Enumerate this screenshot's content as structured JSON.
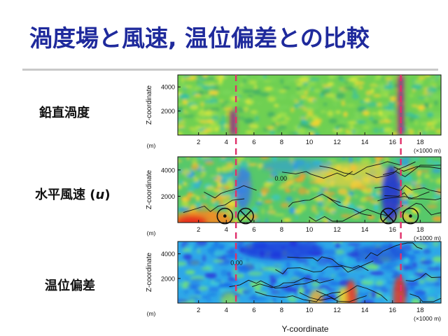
{
  "page": {
    "title": "渦度場と風速, 温位偏差との比較"
  },
  "rows": [
    {
      "label": "鉛直渦度"
    },
    {
      "label_prefix": "水平風速 (",
      "label_var": "u",
      "label_suffix": ")"
    },
    {
      "label": "温位偏差"
    }
  ],
  "colors": {
    "title": "#1f2a9c",
    "marker_line": "#e0306a",
    "low": "#1d2bd8",
    "mid": "#3cd24a",
    "high": "#e8261c"
  },
  "chart_data": [
    {
      "type": "heatmap",
      "panel": "鉛直渦度",
      "ylabel": "Z-coordinate",
      "yunit": "(m)",
      "xunit": "(×1000 m)",
      "xlim": [
        0.5,
        19.5
      ],
      "ylim": [
        0,
        5000
      ],
      "xticks": [
        2,
        4,
        6,
        8,
        10,
        12,
        14,
        16,
        18
      ],
      "yticks": [
        2000,
        4000
      ],
      "marker_lines_x": [
        4.7,
        16.6
      ],
      "features": [
        {
          "x": 4.5,
          "z_top": 2000,
          "sign": "positive"
        },
        {
          "x": 16.6,
          "z_top": 5000,
          "sign": "mixed"
        }
      ]
    },
    {
      "type": "heatmap",
      "panel": "水平風速 (u)",
      "ylabel": "Z-coordinate",
      "yunit": "(m)",
      "xunit": "(×1000 m)",
      "xlim": [
        0.5,
        19.5
      ],
      "ylim": [
        0,
        5000
      ],
      "xticks": [
        2,
        4,
        6,
        8,
        10,
        12,
        14,
        16,
        18
      ],
      "yticks": [
        2000,
        4000
      ],
      "contour_label": "0.00",
      "marker_lines_x": [
        4.7,
        16.6
      ],
      "flow_symbols": [
        {
          "x": 3.9,
          "z": 500,
          "kind": "out"
        },
        {
          "x": 5.4,
          "z": 500,
          "kind": "in"
        },
        {
          "x": 15.7,
          "z": 500,
          "kind": "in"
        },
        {
          "x": 17.3,
          "z": 500,
          "kind": "out"
        }
      ]
    },
    {
      "type": "heatmap",
      "panel": "温位偏差",
      "ylabel": "Z-coordinate",
      "yunit": "(m)",
      "xunit": "(×1000 m)",
      "xlabel": "Y-coordinate",
      "xlim": [
        0.5,
        19.5
      ],
      "ylim": [
        0,
        5000
      ],
      "xticks": [
        2,
        4,
        6,
        8,
        10,
        12,
        14,
        16,
        18
      ],
      "yticks": [
        2000,
        4000
      ],
      "contour_label": "0.00",
      "marker_lines_x": [
        4.7,
        16.6
      ]
    }
  ]
}
